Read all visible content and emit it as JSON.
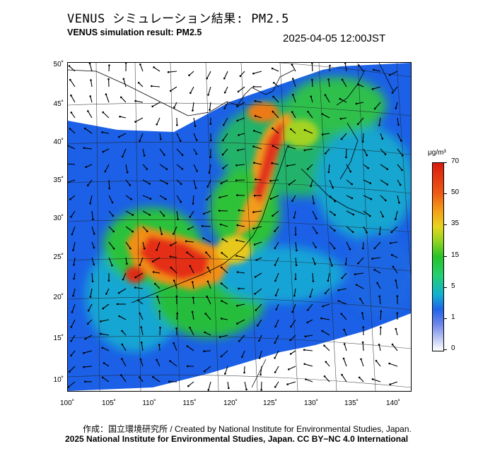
{
  "header": {
    "title_jp": "VENUS シミュレーション結果: PM2.5",
    "title_en": "VENUS simulation result: PM2.5",
    "timestamp": "2025-04-05 12:00JST"
  },
  "map": {
    "lat_labels": [
      "50˚",
      "45˚",
      "40˚",
      "35˚",
      "30˚",
      "25˚",
      "20˚",
      "15˚",
      "10˚"
    ],
    "lon_labels": [
      "100˚",
      "105˚",
      "110˚",
      "115˚",
      "120˚",
      "125˚",
      "130˚",
      "135˚",
      "140˚"
    ]
  },
  "colorbar": {
    "unit": "μg/m³",
    "labels": [
      "70",
      "50",
      "35",
      "15",
      "5",
      "1",
      "0"
    ]
  },
  "credits": {
    "line1": "作成：国立環境研究所 / Created by National Institute for Environmental Studies, Japan.",
    "line2": "2025 National Institute for Environmental Studies, Japan. CC BY−NC 4.0 International"
  }
}
